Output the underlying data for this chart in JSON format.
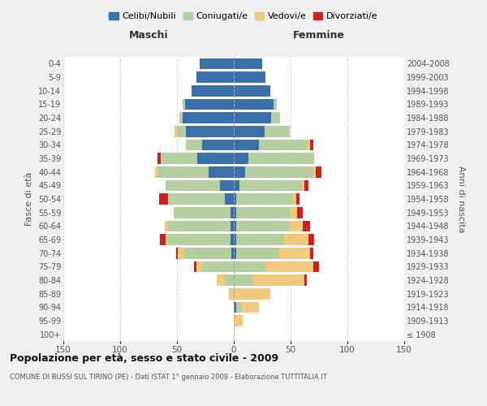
{
  "age_groups": [
    "100+",
    "95-99",
    "90-94",
    "85-89",
    "80-84",
    "75-79",
    "70-74",
    "65-69",
    "60-64",
    "55-59",
    "50-54",
    "45-49",
    "40-44",
    "35-39",
    "30-34",
    "25-29",
    "20-24",
    "15-19",
    "10-14",
    "5-9",
    "0-4"
  ],
  "birth_years": [
    "≤ 1908",
    "1909-1913",
    "1914-1918",
    "1919-1923",
    "1924-1928",
    "1929-1933",
    "1934-1938",
    "1939-1943",
    "1944-1948",
    "1949-1953",
    "1954-1958",
    "1959-1963",
    "1964-1968",
    "1969-1973",
    "1974-1978",
    "1979-1983",
    "1984-1988",
    "1989-1993",
    "1994-1998",
    "1999-2003",
    "2004-2008"
  ],
  "colors": {
    "celibe": "#3a6fa8",
    "coniugato": "#b5cfa0",
    "vedovo": "#f0c97e",
    "divorziato": "#cc2222"
  },
  "maschi": {
    "celibe": [
      0,
      0,
      0,
      0,
      0,
      0,
      2,
      3,
      3,
      3,
      8,
      12,
      22,
      32,
      28,
      42,
      45,
      43,
      37,
      33,
      30
    ],
    "coniugato": [
      0,
      0,
      0,
      1,
      8,
      28,
      42,
      55,
      55,
      50,
      50,
      48,
      45,
      32,
      14,
      8,
      3,
      2,
      0,
      0,
      0
    ],
    "vedovo": [
      0,
      0,
      0,
      3,
      7,
      5,
      5,
      2,
      3,
      0,
      0,
      0,
      2,
      0,
      0,
      2,
      0,
      0,
      0,
      0,
      0
    ],
    "divorziato": [
      0,
      0,
      0,
      0,
      0,
      2,
      2,
      5,
      0,
      0,
      8,
      0,
      0,
      3,
      0,
      0,
      0,
      0,
      0,
      0,
      0
    ]
  },
  "femmine": {
    "nubile": [
      0,
      0,
      2,
      0,
      0,
      0,
      2,
      2,
      2,
      2,
      2,
      5,
      10,
      13,
      22,
      27,
      33,
      35,
      32,
      28,
      25
    ],
    "coniugata": [
      0,
      0,
      5,
      0,
      17,
      28,
      38,
      42,
      47,
      48,
      50,
      55,
      60,
      58,
      43,
      22,
      8,
      3,
      0,
      0,
      0
    ],
    "vedova": [
      0,
      8,
      15,
      32,
      45,
      42,
      27,
      22,
      12,
      6,
      3,
      2,
      2,
      0,
      2,
      0,
      0,
      0,
      0,
      0,
      0
    ],
    "divorziata": [
      0,
      0,
      0,
      0,
      2,
      5,
      3,
      5,
      6,
      5,
      3,
      4,
      5,
      0,
      3,
      0,
      0,
      0,
      0,
      0,
      0
    ]
  },
  "title": "Popolazione per età, sesso e stato civile - 2009",
  "subtitle": "COMUNE DI BUSSI SUL TIRINO (PE) - Dati ISTAT 1° gennaio 2009 - Elaborazione TUTTITALIA.IT",
  "xlabel_left": "Maschi",
  "xlabel_right": "Femmine",
  "ylabel_left": "Fasce di età",
  "ylabel_right": "Anni di nascita",
  "xlim": 150,
  "legend_labels": [
    "Celibi/Nubili",
    "Coniugati/e",
    "Vedovi/e",
    "Divorziati/e"
  ],
  "bg_color": "#f0f0f0",
  "plot_bg_color": "#ffffff"
}
